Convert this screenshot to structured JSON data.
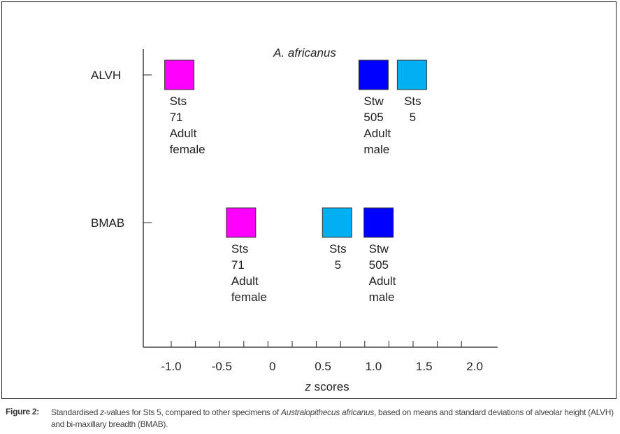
{
  "chart_data": {
    "type": "scatter",
    "title": "A. africanus",
    "xlabel_italic": "z",
    "xlabel": "scores",
    "xlim": [
      -1.2,
      2.25
    ],
    "xticks": [
      "-1.0",
      "-0.5",
      "0",
      "0.5",
      "1.0",
      "1.5",
      "2.0"
    ],
    "categories": [
      "ALVH",
      "BMAB"
    ],
    "points": [
      {
        "category": "ALVH",
        "z": -0.92,
        "label": [
          "Sts",
          "71",
          "Adult",
          "female"
        ],
        "color": "#ff00ff"
      },
      {
        "category": "ALVH",
        "z": 1.0,
        "label": [
          "Stw",
          "505",
          "Adult",
          "male"
        ],
        "color": "#0000ff"
      },
      {
        "category": "ALVH",
        "z": 1.38,
        "label": [
          "Sts",
          "5"
        ],
        "color": "#00b0f0"
      },
      {
        "category": "BMAB",
        "z": -0.31,
        "label": [
          "Sts",
          "71",
          "Adult",
          "female"
        ],
        "color": "#ff00ff"
      },
      {
        "category": "BMAB",
        "z": 0.64,
        "label": [
          "Sts",
          "5"
        ],
        "color": "#00b0f0"
      },
      {
        "category": "BMAB",
        "z": 1.05,
        "label": [
          "Stw",
          "505",
          "Adult",
          "male"
        ],
        "color": "#0000ff"
      }
    ]
  },
  "caption": {
    "label": "Figure 2:",
    "text_1": "Standardised ",
    "text_z": "z",
    "text_2": "-values for Sts 5, compared to other specimens of ",
    "text_species": "Australopithecus africanus",
    "text_3": ", based on means and standard deviations of alveolar height (ALVH) and bi-maxillary breadth (BMAB)."
  }
}
